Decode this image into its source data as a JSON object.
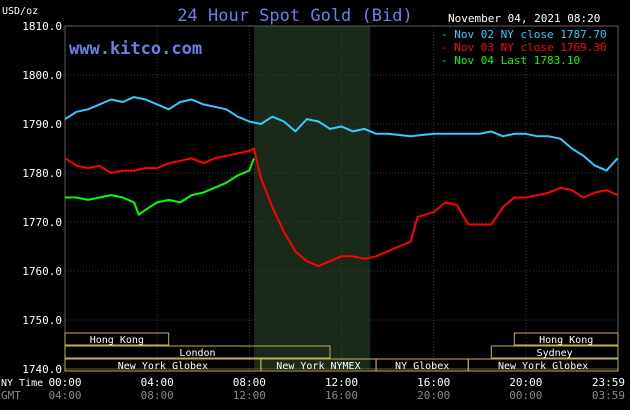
{
  "chart_data": {
    "type": "line",
    "title": "24 Hour Spot Gold (Bid)",
    "brand": "www.kitco.com",
    "timestamp": "November 04, 2021 08:20",
    "ylabel": "USD/oz",
    "ylim": [
      1740,
      1810
    ],
    "y_ticks": [
      "1810.0",
      "1800.0",
      "1790.0",
      "1780.0",
      "1770.0",
      "1760.0",
      "1750.0",
      "1740.0"
    ],
    "x_row_label": "NY Time",
    "x_row2_label": "GMT",
    "x_ticks": [
      "00:00",
      "04:00",
      "08:00",
      "12:00",
      "16:00",
      "20:00",
      "23:59"
    ],
    "x_ticks_gmt": [
      "04:00",
      "08:00",
      "12:00",
      "16:00",
      "20:00",
      "00:00",
      "03:59"
    ],
    "grid": true,
    "legend_position": "top-right",
    "highlight_range_hours": [
      8.2,
      13.25
    ],
    "series": [
      {
        "name": "Nov 02 NY close 1787.70",
        "color": "#33ccff",
        "x": [
          0,
          0.5,
          1,
          1.5,
          2,
          2.5,
          3,
          3.5,
          4,
          4.5,
          5,
          5.5,
          6,
          6.5,
          7,
          7.5,
          8,
          8.5,
          9,
          9.5,
          10,
          10.5,
          11,
          11.5,
          12,
          12.5,
          13,
          13.5,
          14,
          15,
          16,
          17,
          18,
          18.5,
          19,
          19.5,
          20,
          20.5,
          21,
          21.5,
          22,
          22.5,
          23,
          23.5,
          23.98
        ],
        "values": [
          1791,
          1792.5,
          1793,
          1794,
          1795,
          1794.5,
          1795.5,
          1795,
          1794,
          1793,
          1794.5,
          1795,
          1794,
          1793.5,
          1793,
          1791.5,
          1790.5,
          1790,
          1791.5,
          1790.5,
          1788.5,
          1791,
          1790.5,
          1789,
          1789.5,
          1788.5,
          1789,
          1788,
          1788,
          1787.5,
          1788,
          1788,
          1788,
          1788.5,
          1787.5,
          1788,
          1788,
          1787.5,
          1787.5,
          1787,
          1785,
          1783.5,
          1781.5,
          1780.5,
          1783
        ]
      },
      {
        "name": "Nov 03 NY close 1769.30",
        "color": "#ff0000",
        "x": [
          0,
          0.5,
          1,
          1.5,
          2,
          2.5,
          3,
          3.5,
          4,
          4.5,
          5,
          5.5,
          6,
          6.5,
          7,
          7.5,
          8,
          8.2,
          8.5,
          9,
          9.5,
          10,
          10.5,
          11,
          11.5,
          12,
          12.5,
          13,
          13.5,
          14,
          14.5,
          15,
          15.3,
          16,
          16.5,
          17,
          17.5,
          18,
          18.5,
          19,
          19.5,
          20,
          20.5,
          21,
          21.5,
          22,
          22.5,
          23,
          23.5,
          23.98
        ],
        "values": [
          1783,
          1781.5,
          1781,
          1781.5,
          1780,
          1780.5,
          1780.5,
          1781,
          1781,
          1782,
          1782.5,
          1783,
          1782,
          1783,
          1783.5,
          1784,
          1784.5,
          1785,
          1779,
          1773,
          1768,
          1764,
          1762,
          1761,
          1762,
          1763,
          1763,
          1762.5,
          1763,
          1764,
          1765,
          1766,
          1771,
          1772,
          1774,
          1773.5,
          1769.5,
          1769.5,
          1769.5,
          1773,
          1775,
          1775,
          1775.5,
          1776,
          1777,
          1776.5,
          1775,
          1776,
          1776.5,
          1775.5
        ]
      },
      {
        "name": "Nov 04 Last 1783.10",
        "color": "#00ff00",
        "x": [
          0,
          0.5,
          1,
          1.5,
          2,
          2.5,
          3,
          3.2,
          3.5,
          4,
          4.5,
          5,
          5.5,
          6,
          6.5,
          7,
          7.5,
          8,
          8.2
        ],
        "values": [
          1775,
          1775,
          1774.5,
          1775,
          1775.5,
          1775,
          1774,
          1771.5,
          1772.5,
          1774,
          1774.5,
          1774,
          1775.5,
          1776,
          1777,
          1778,
          1779.5,
          1780.5,
          1783
        ]
      }
    ],
    "sessions": [
      {
        "name": "Hong Kong",
        "start": 0,
        "end": 4.5,
        "row": 0
      },
      {
        "name": "London",
        "start": 0,
        "end": 11.5,
        "row": 1
      },
      {
        "name": "New York Globex",
        "start": 0,
        "end": 8.5,
        "row": 2
      },
      {
        "name": "New York NYMEX",
        "start": 8.5,
        "end": 13.5,
        "row": 2
      },
      {
        "name": "NY Globex",
        "start": 13.5,
        "end": 17.5,
        "row": 2
      },
      {
        "name": "Hong Kong",
        "start": 19.5,
        "end": 24,
        "row": 0
      },
      {
        "name": "Sydney",
        "start": 18.5,
        "end": 24,
        "row": 1
      },
      {
        "name": "New York Globex",
        "start": 17.5,
        "end": 24,
        "row": 2
      }
    ]
  }
}
